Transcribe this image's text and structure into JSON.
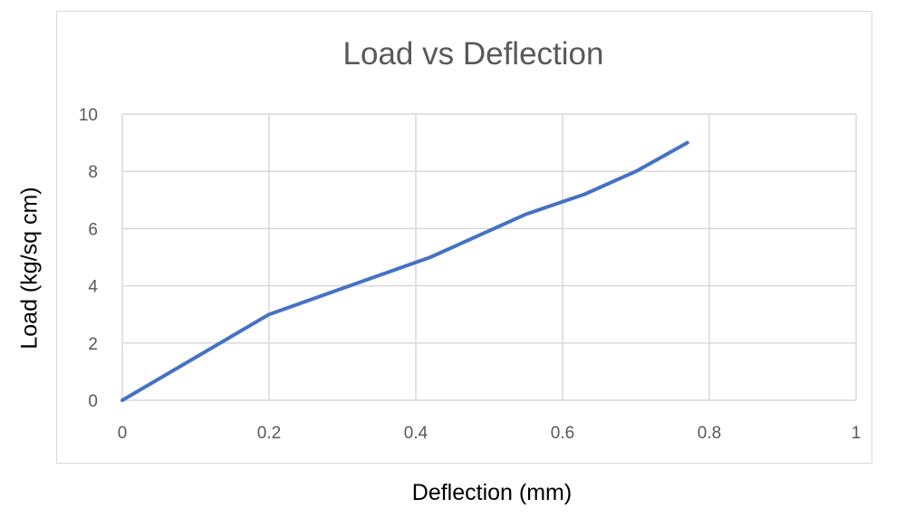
{
  "chart_data": {
    "type": "line",
    "title": "Load vs Deflection",
    "xlabel": "Deflection (mm)",
    "ylabel": "Load (kg/sq cm)",
    "xlim": [
      0,
      1
    ],
    "ylim": [
      0,
      10
    ],
    "x_ticks": [
      "0",
      "0.2",
      "0.4",
      "0.6",
      "0.8",
      "1"
    ],
    "y_ticks": [
      "0",
      "2",
      "4",
      "6",
      "8",
      "10"
    ],
    "grid": true,
    "legend": "none",
    "series": [
      {
        "color": "#4472c4",
        "x": [
          0,
          0.2,
          0.42,
          0.55,
          0.63,
          0.7,
          0.77
        ],
        "y": [
          0,
          3,
          5,
          6.5,
          7.2,
          8,
          9
        ]
      }
    ]
  }
}
